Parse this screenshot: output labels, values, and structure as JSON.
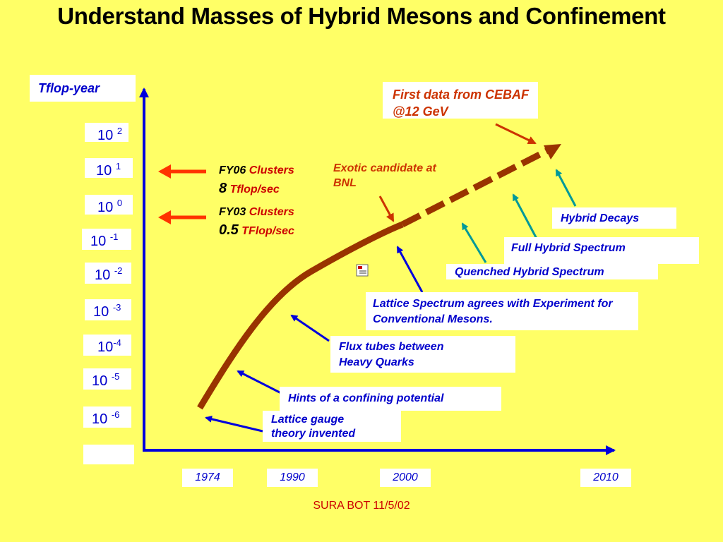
{
  "title": "Understand Masses of Hybrid Mesons and Confinement",
  "y_axis_title": "Tflop-year",
  "y_ticks": [
    {
      "base": "10 ",
      "exp": "2"
    },
    {
      "base": "10 ",
      "exp": "1"
    },
    {
      "base": "10 ",
      "exp": "0"
    },
    {
      "base": "10 ",
      "exp": "-1"
    },
    {
      "base": "10 ",
      "exp": "-2"
    },
    {
      "base": "10 ",
      "exp": "-3"
    },
    {
      "base": "10",
      "exp": "-4"
    },
    {
      "base": "10 ",
      "exp": "-5"
    },
    {
      "base": "10 ",
      "exp": "-6"
    }
  ],
  "x_ticks": [
    "1974",
    "1990",
    "2000",
    "2010"
  ],
  "fy06": {
    "name": "FY06",
    "clusters": "Clusters",
    "value": "8",
    "unit": "Tflop/sec"
  },
  "fy03": {
    "name": "FY03",
    "clusters": "Clusters",
    "value": "0.5",
    "unit": "TFlop/sec"
  },
  "first_data": "First data from CEBAF @12 GeV",
  "exotic": "Exotic candidate at BNL",
  "hybrid_decays": "Hybrid Decays",
  "full_hybrid": "Full  Hybrid Spectrum",
  "quenched_hybrid": "Quenched Hybrid Spectrum",
  "lattice_spectrum": "Lattice Spectrum agrees with Experiment for Conventional Mesons.",
  "flux_tubes": "Flux tubes between Heavy Quarks",
  "hints": "Hints of a confining potential",
  "lattice_gauge": "Lattice gauge theory invented",
  "footer": "SURA BOT 11/5/02",
  "colors": {
    "background": "#ffff66",
    "curve": "#993300",
    "blue_arrow": "#0000dd",
    "teal_arrow": "#009999",
    "red_arrow": "#ff3300"
  }
}
